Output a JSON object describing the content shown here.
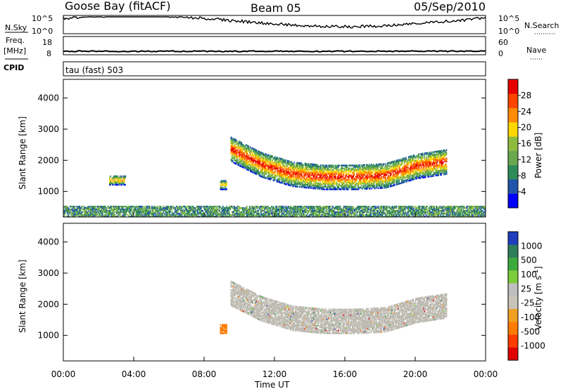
{
  "header": {
    "station": "Goose Bay (fitACF)",
    "beam": "Beam 05",
    "date": "05/Sep/2010"
  },
  "strip_panels": {
    "nsky": {
      "label": "N.Sky",
      "y_ticks": [
        "10^5",
        "10^0"
      ]
    },
    "nsearch": {
      "label": "N.Search",
      "y_ticks": [
        "10^5",
        "10^0"
      ]
    },
    "freq": {
      "label_line1": "Freq.",
      "label_line2": "[MHz]",
      "y_ticks": [
        "18",
        "8"
      ]
    },
    "nave": {
      "label": "Nave",
      "y_ticks": [
        "60",
        "0"
      ]
    },
    "cpid": {
      "label": "CPID",
      "value": "tau (fast) 503"
    }
  },
  "colors": {
    "power_scale": [
      "#0000ff",
      "#2255aa",
      "#2e8b57",
      "#6aa84f",
      "#8fbc3f",
      "#ffd700",
      "#ff8c00",
      "#ff4500",
      "#e60000"
    ],
    "velocity_scale": [
      "#1f3fbf",
      "#2e7d5b",
      "#3daa3d",
      "#7ccd3a",
      "#bfbfbf",
      "#c9c4b8",
      "#f0a020",
      "#ff7b00",
      "#ff3b00",
      "#e00000"
    ],
    "ground_scatter": "#bebbb2"
  },
  "chart_data": [
    {
      "type": "heatmap",
      "name": "power",
      "xlabel": "",
      "ylabel": "Slant Range [km]",
      "x_ticks": [
        "00:00",
        "04:00",
        "08:00",
        "12:00",
        "16:00",
        "20:00",
        "00:00"
      ],
      "xlim_hours": [
        0,
        24
      ],
      "y_ticks": [
        1000,
        2000,
        3000,
        4000
      ],
      "ylim": [
        180,
        4600
      ],
      "colorbar": {
        "label": "Power [dB]",
        "ticks": [
          4,
          8,
          12,
          16,
          20,
          24,
          28
        ],
        "range": [
          0,
          32
        ]
      },
      "features": [
        {
          "desc": "main echo band",
          "t_start": 9.5,
          "t_end": 21.8,
          "range_center_km": [
            2300,
            1800,
            1500,
            1400,
            1400,
            1450,
            1750,
            1900
          ],
          "peak_db": 30
        },
        {
          "desc": "patch",
          "t_start": 2.6,
          "t_end": 3.5,
          "range_km": [
            1200,
            1500
          ],
          "peak_db": 24
        },
        {
          "desc": "patch",
          "t_start": 8.9,
          "t_end": 9.3,
          "range_km": [
            1050,
            1350
          ],
          "peak_db": 22
        },
        {
          "desc": "near-range clutter",
          "t_start": 0.0,
          "t_end": 24.0,
          "range_km": [
            180,
            520
          ],
          "peak_db": 16
        }
      ]
    },
    {
      "type": "heatmap",
      "name": "velocity",
      "xlabel": "Time UT",
      "ylabel": "Slant Range [km]",
      "x_ticks": [
        "00:00",
        "04:00",
        "08:00",
        "12:00",
        "16:00",
        "20:00",
        "00:00"
      ],
      "xlim_hours": [
        0,
        24
      ],
      "y_ticks": [
        1000,
        2000,
        3000,
        4000
      ],
      "ylim": [
        180,
        4600
      ],
      "colorbar": {
        "label": "Velocity [m s^-1]",
        "ticks": [
          1000,
          500,
          100,
          25,
          -25,
          -100,
          -500,
          -1000
        ]
      },
      "features": [
        {
          "desc": "ground scatter band (grey)",
          "t_start": 9.5,
          "t_end": 21.8,
          "range_center_km": [
            2300,
            1800,
            1500,
            1400,
            1400,
            1450,
            1750,
            1900
          ]
        },
        {
          "desc": "negative velocity patch",
          "t_start": 8.9,
          "t_end": 9.3,
          "range_km": [
            1050,
            1350
          ],
          "v": -150
        }
      ]
    }
  ],
  "axes": {
    "time_label": "Time UT",
    "power_colorbar_label": "Power [dB]",
    "velocity_colorbar_label_base": "Velocity [m s",
    "velocity_colorbar_label_exp": "-1",
    "velocity_colorbar_label_end": "]",
    "slant_range_label": "Slant Range [km]"
  }
}
